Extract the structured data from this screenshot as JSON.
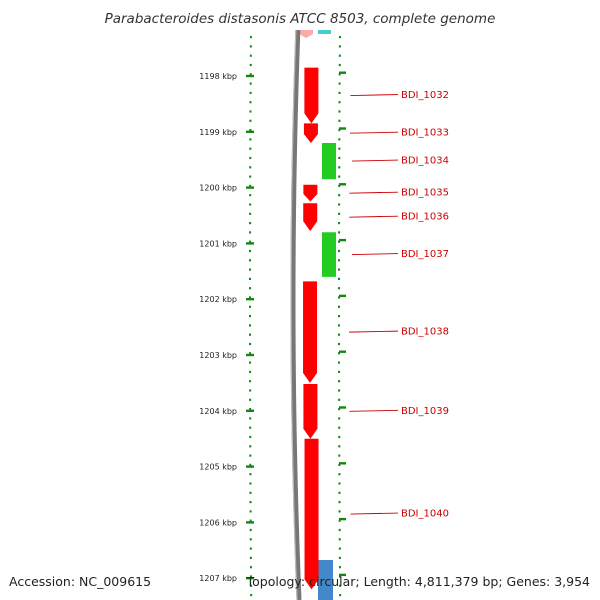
{
  "title": "Parabacteroides distasonis ATCC 8503, complete genome",
  "footer": {
    "accession": "Accession: NC_009615",
    "summary": "Topology: circular; Length: 4,811,379 bp; Genes: 3,954"
  },
  "colors": {
    "forward_gene": "#ff0000",
    "reverse_gene": "#22cc22",
    "backbone": "#777777",
    "tick": "#118811",
    "label": "#cc0000",
    "top_teal": "#44cccc",
    "top_pink": "#ffaaaa",
    "bottom_blue": "#4488cc"
  },
  "ruler": [
    {
      "kbp": 1198,
      "label": "1198 kbp"
    },
    {
      "kbp": 1199,
      "label": "1199 kbp"
    },
    {
      "kbp": 1200,
      "label": "1200 kbp"
    },
    {
      "kbp": 1201,
      "label": "1201 kbp"
    },
    {
      "kbp": 1202,
      "label": "1202 kbp"
    },
    {
      "kbp": 1203,
      "label": "1203 kbp"
    },
    {
      "kbp": 1204,
      "label": "1204 kbp"
    },
    {
      "kbp": 1205,
      "label": "1205 kbp"
    },
    {
      "kbp": 1206,
      "label": "1206 kbp"
    },
    {
      "kbp": 1207,
      "label": "1207 kbp"
    }
  ],
  "genes": [
    {
      "name": "BDI_1032",
      "strand": "+",
      "start_kbp": 1197.85,
      "end_kbp": 1198.85
    },
    {
      "name": "BDI_1033",
      "strand": "+",
      "start_kbp": 1198.85,
      "end_kbp": 1199.2
    },
    {
      "name": "BDI_1034",
      "strand": "-",
      "start_kbp": 1199.2,
      "end_kbp": 1199.85
    },
    {
      "name": "BDI_1035",
      "strand": "+",
      "start_kbp": 1199.95,
      "end_kbp": 1200.25
    },
    {
      "name": "BDI_1036",
      "strand": "+",
      "start_kbp": 1200.28,
      "end_kbp": 1200.78
    },
    {
      "name": "BDI_1037",
      "strand": "-",
      "start_kbp": 1200.8,
      "end_kbp": 1201.6
    },
    {
      "name": "BDI_1038",
      "strand": "+",
      "start_kbp": 1201.68,
      "end_kbp": 1203.5
    },
    {
      "name": "BDI_1039",
      "strand": "+",
      "start_kbp": 1203.52,
      "end_kbp": 1204.5
    },
    {
      "name": "BDI_1040",
      "strand": "+",
      "start_kbp": 1204.5,
      "end_kbp": 1207.2
    }
  ]
}
